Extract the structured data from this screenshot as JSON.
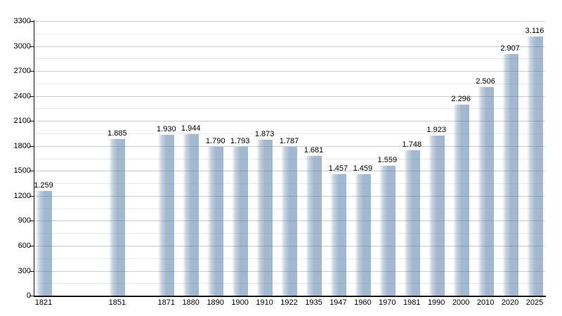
{
  "chart_data": {
    "type": "bar",
    "title": "",
    "xlabel": "",
    "ylabel": "",
    "categories": [
      "1821",
      "1851",
      "1871",
      "1880",
      "1890",
      "1900",
      "1910",
      "1922",
      "1935",
      "1947",
      "1960",
      "1970",
      "1981",
      "1990",
      "2000",
      "2010",
      "2020",
      "2025"
    ],
    "values": [
      1259,
      1885,
      1930,
      1944,
      1790,
      1793,
      1873,
      1787,
      1681,
      1457,
      1459,
      1559,
      1748,
      1923,
      2296,
      2506,
      2907,
      3116
    ],
    "value_labels": [
      "1.259",
      "1.885",
      "1.930",
      "1.944",
      "1.790",
      "1.793",
      "1.873",
      "1.787",
      "1.681",
      "1.457",
      "1.459",
      "1.559",
      "1.748",
      "1.923",
      "2.296",
      "2.506",
      "2.907",
      "3.116"
    ],
    "y_tick_labels": [
      "0",
      "300",
      "600",
      "900",
      "1200",
      "1500",
      "1800",
      "2100",
      "2400",
      "2700",
      "3000",
      "3300"
    ],
    "ylim": [
      0,
      3300
    ],
    "y_major_step": 300,
    "y_minor_step": 150,
    "grid": true,
    "legend": false,
    "layout": {
      "time_slots": [
        0,
        3,
        5,
        6,
        7,
        8,
        9,
        10,
        11,
        12,
        13,
        14,
        15,
        16,
        17,
        18,
        19,
        20
      ],
      "bar_color": "#a2b8d0",
      "bar_highlight_color": "#ffffff",
      "major_grid_color": "rgba(110,110,110,0.35)",
      "minor_grid_color": "rgba(110,110,110,0.14)",
      "axis_color": "#111111",
      "text_color": "#000000",
      "background_color": "#ffffff"
    }
  }
}
